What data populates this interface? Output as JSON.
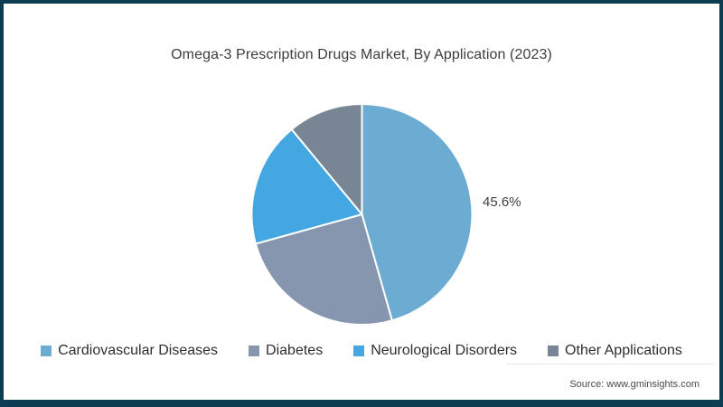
{
  "page": {
    "background": "#ffffff",
    "frame_border_color": "#0C3D53"
  },
  "chart_data": {
    "type": "pie",
    "title": "Omega-3 Prescription Drugs Market, By Application (2023)",
    "categories": [
      "Cardiovascular Diseases",
      "Diabetes",
      "Neurological Disorders",
      "Other Applications"
    ],
    "values": [
      45.6,
      25.1,
      18.3,
      11.0
    ],
    "colors": [
      "#6CACD3",
      "#8596AE",
      "#45A7E1",
      "#788594"
    ],
    "slice_divider_color": "#ffffff",
    "start_angle_deg": 0,
    "direction": "clockwise",
    "labeled_slice": {
      "category": "Cardiovascular Diseases",
      "label": "45.6%"
    },
    "legend_position": "bottom"
  },
  "footer": {
    "source": "Source: www.gminsights.com"
  }
}
